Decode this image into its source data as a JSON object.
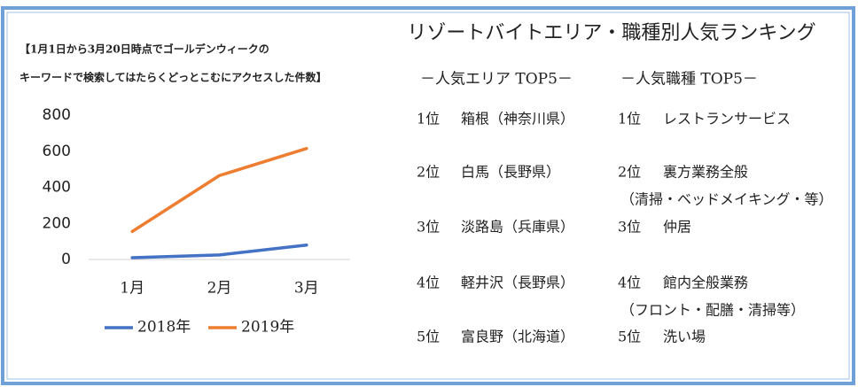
{
  "chart_data": {
    "type": "line",
    "title": [
      "【1月1日から3月20日時点でゴールデンウィークの",
      "キーワードで検索してはたらくどっとこむにアクセスした件数】"
    ],
    "categories": [
      "1月",
      "2月",
      "3月"
    ],
    "series": [
      {
        "name": "2018年",
        "color": "#4472c4",
        "values": [
          10,
          25,
          80
        ]
      },
      {
        "name": "2019年",
        "color": "#ed7d31",
        "values": [
          155,
          465,
          615
        ]
      }
    ],
    "ylim": [
      0,
      800
    ],
    "yticks": [
      0,
      200,
      400,
      600,
      800
    ],
    "grid": false
  },
  "ranking": {
    "title": "リゾートバイトエリア・職種別人気ランキング",
    "area_header": "－人気エリア TOP5－",
    "job_header": "－人気職種 TOP5－",
    "areas": [
      {
        "rank": "1位",
        "name": "箱根（神奈川県）"
      },
      {
        "rank": "2位",
        "name": "白馬（長野県）"
      },
      {
        "rank": "3位",
        "name": "淡路島（兵庫県）"
      },
      {
        "rank": "4位",
        "name": "軽井沢（長野県）"
      },
      {
        "rank": "5位",
        "name": "富良野（北海道）"
      }
    ],
    "jobs": [
      {
        "rank": "1位",
        "name": "レストランサービス"
      },
      {
        "rank": "2位",
        "name": "裏方業務全般",
        "note": "（清掃・ベッドメイキング・等）"
      },
      {
        "rank": "3位",
        "name": "仲居"
      },
      {
        "rank": "4位",
        "name": "館内全般業務",
        "note": "（フロント・配膳・清掃等）"
      },
      {
        "rank": "5位",
        "name": "洗い場"
      }
    ]
  }
}
